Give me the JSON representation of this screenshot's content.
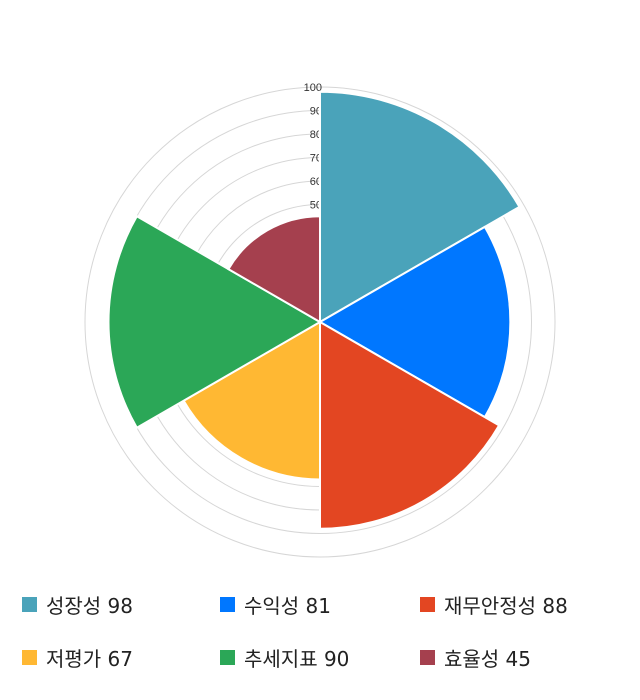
{
  "chart_data": {
    "type": "polar-area",
    "categories": [
      "성장성",
      "수익성",
      "재무안정성",
      "저평가",
      "추세지표",
      "효율성"
    ],
    "values": [
      98,
      81,
      88,
      67,
      90,
      45
    ],
    "colors": [
      "#4aa3ba",
      "#0077ff",
      "#e34622",
      "#ffb833",
      "#2ba757",
      "#a5404e"
    ],
    "rlim": [
      0,
      100
    ],
    "radial_ticks": [
      50,
      60,
      70,
      80,
      90,
      100
    ],
    "grid": true,
    "legend_position": "bottom",
    "legend": [
      "성장성 98",
      "수익성 81",
      "재무안정성 88",
      "저평가 67",
      "추세지표 90",
      "효율성 45"
    ]
  }
}
